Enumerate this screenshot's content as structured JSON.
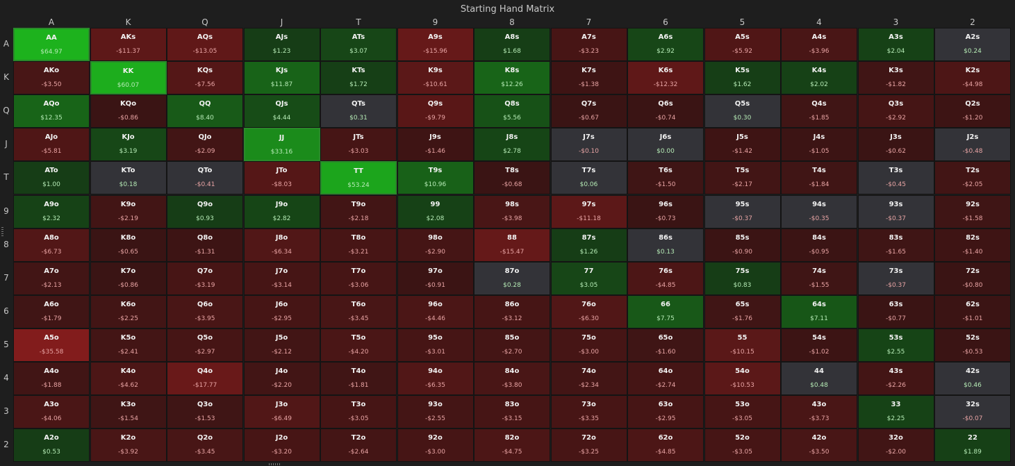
{
  "title": "Starting Hand Matrix",
  "ranks": [
    "A",
    "K",
    "Q",
    "J",
    "T",
    "9",
    "8",
    "7",
    "6",
    "5",
    "4",
    "3",
    "2"
  ],
  "cells": [
    [
      [
        "AA",
        "$64.97"
      ],
      [
        "AKs",
        "-$11.37"
      ],
      [
        "AQs",
        "-$13.05"
      ],
      [
        "AJs",
        "$1.23"
      ],
      [
        "ATs",
        "$3.07"
      ],
      [
        "A9s",
        "-$15.96"
      ],
      [
        "A8s",
        "$1.68"
      ],
      [
        "A7s",
        "-$3.23"
      ],
      [
        "A6s",
        "$2.92"
      ],
      [
        "A5s",
        "-$5.92"
      ],
      [
        "A4s",
        "-$3.96"
      ],
      [
        "A3s",
        "$2.04"
      ],
      [
        "A2s",
        "$0.24"
      ]
    ],
    [
      [
        "AKo",
        "-$3.50"
      ],
      [
        "KK",
        "$60.07"
      ],
      [
        "KQs",
        "-$7.56"
      ],
      [
        "KJs",
        "$11.87"
      ],
      [
        "KTs",
        "$1.72"
      ],
      [
        "K9s",
        "-$10.61"
      ],
      [
        "K8s",
        "$12.26"
      ],
      [
        "K7s",
        "-$1.38"
      ],
      [
        "K6s",
        "-$12.32"
      ],
      [
        "K5s",
        "$1.62"
      ],
      [
        "K4s",
        "$2.02"
      ],
      [
        "K3s",
        "-$1.82"
      ],
      [
        "K2s",
        "-$4.98"
      ]
    ],
    [
      [
        "AQo",
        "$12.35"
      ],
      [
        "KQo",
        "-$0.86"
      ],
      [
        "QQ",
        "$8.40"
      ],
      [
        "QJs",
        "$4.44"
      ],
      [
        "QTs",
        "$0.31"
      ],
      [
        "Q9s",
        "-$9.79"
      ],
      [
        "Q8s",
        "$5.56"
      ],
      [
        "Q7s",
        "-$0.67"
      ],
      [
        "Q6s",
        "-$0.74"
      ],
      [
        "Q5s",
        "$0.30"
      ],
      [
        "Q4s",
        "-$1.85"
      ],
      [
        "Q3s",
        "-$2.92"
      ],
      [
        "Q2s",
        "-$1.20"
      ]
    ],
    [
      [
        "AJo",
        "-$5.81"
      ],
      [
        "KJo",
        "$3.19"
      ],
      [
        "QJo",
        "-$2.09"
      ],
      [
        "JJ",
        "$33.16"
      ],
      [
        "JTs",
        "-$3.03"
      ],
      [
        "J9s",
        "-$1.46"
      ],
      [
        "J8s",
        "$2.78"
      ],
      [
        "J7s",
        "-$0.10"
      ],
      [
        "J6s",
        "$0.00"
      ],
      [
        "J5s",
        "-$1.42"
      ],
      [
        "J4s",
        "-$1.05"
      ],
      [
        "J3s",
        "-$0.62"
      ],
      [
        "J2s",
        "-$0.48"
      ]
    ],
    [
      [
        "ATo",
        "$1.00"
      ],
      [
        "KTo",
        "$0.18"
      ],
      [
        "QTo",
        "-$0.41"
      ],
      [
        "JTo",
        "-$8.03"
      ],
      [
        "TT",
        "$53.24"
      ],
      [
        "T9s",
        "$10.96"
      ],
      [
        "T8s",
        "-$0.68"
      ],
      [
        "T7s",
        "$0.06"
      ],
      [
        "T6s",
        "-$1.50"
      ],
      [
        "T5s",
        "-$2.17"
      ],
      [
        "T4s",
        "-$1.84"
      ],
      [
        "T3s",
        "-$0.45"
      ],
      [
        "T2s",
        "-$2.05"
      ]
    ],
    [
      [
        "A9o",
        "$2.32"
      ],
      [
        "K9o",
        "-$2.19"
      ],
      [
        "Q9o",
        "$0.93"
      ],
      [
        "J9o",
        "$2.82"
      ],
      [
        "T9o",
        "-$2.18"
      ],
      [
        "99",
        "$2.08"
      ],
      [
        "98s",
        "-$3.98"
      ],
      [
        "97s",
        "-$11.18"
      ],
      [
        "96s",
        "-$0.73"
      ],
      [
        "95s",
        "-$0.37"
      ],
      [
        "94s",
        "-$0.35"
      ],
      [
        "93s",
        "-$0.37"
      ],
      [
        "92s",
        "-$1.58"
      ]
    ],
    [
      [
        "A8o",
        "-$6.73"
      ],
      [
        "K8o",
        "-$0.65"
      ],
      [
        "Q8o",
        "-$1.31"
      ],
      [
        "J8o",
        "-$6.34"
      ],
      [
        "T8o",
        "-$3.21"
      ],
      [
        "98o",
        "-$2.90"
      ],
      [
        "88",
        "-$15.47"
      ],
      [
        "87s",
        "$1.26"
      ],
      [
        "86s",
        "$0.13"
      ],
      [
        "85s",
        "-$0.90"
      ],
      [
        "84s",
        "-$0.95"
      ],
      [
        "83s",
        "-$1.65"
      ],
      [
        "82s",
        "-$1.40"
      ]
    ],
    [
      [
        "A7o",
        "-$2.13"
      ],
      [
        "K7o",
        "-$0.86"
      ],
      [
        "Q7o",
        "-$3.19"
      ],
      [
        "J7o",
        "-$3.14"
      ],
      [
        "T7o",
        "-$3.06"
      ],
      [
        "97o",
        "-$0.91"
      ],
      [
        "87o",
        "$0.28"
      ],
      [
        "77",
        "$3.05"
      ],
      [
        "76s",
        "-$4.85"
      ],
      [
        "75s",
        "$0.83"
      ],
      [
        "74s",
        "-$1.55"
      ],
      [
        "73s",
        "-$0.37"
      ],
      [
        "72s",
        "-$0.80"
      ]
    ],
    [
      [
        "A6o",
        "-$1.79"
      ],
      [
        "K6o",
        "-$2.25"
      ],
      [
        "Q6o",
        "-$3.95"
      ],
      [
        "J6o",
        "-$2.95"
      ],
      [
        "T6o",
        "-$3.45"
      ],
      [
        "96o",
        "-$4.46"
      ],
      [
        "86o",
        "-$3.12"
      ],
      [
        "76o",
        "-$6.30"
      ],
      [
        "66",
        "$7.75"
      ],
      [
        "65s",
        "-$1.76"
      ],
      [
        "64s",
        "$7.11"
      ],
      [
        "63s",
        "-$0.77"
      ],
      [
        "62s",
        "-$1.01"
      ]
    ],
    [
      [
        "A5o",
        "-$35.58"
      ],
      [
        "K5o",
        "-$2.41"
      ],
      [
        "Q5o",
        "-$2.97"
      ],
      [
        "J5o",
        "-$2.12"
      ],
      [
        "T5o",
        "-$4.20"
      ],
      [
        "95o",
        "-$3.01"
      ],
      [
        "85o",
        "-$2.70"
      ],
      [
        "75o",
        "-$3.00"
      ],
      [
        "65o",
        "-$1.60"
      ],
      [
        "55",
        "-$10.15"
      ],
      [
        "54s",
        "-$1.02"
      ],
      [
        "53s",
        "$2.55"
      ],
      [
        "52s",
        "-$0.53"
      ]
    ],
    [
      [
        "A4o",
        "-$1.88"
      ],
      [
        "K4o",
        "-$4.62"
      ],
      [
        "Q4o",
        "-$17.77"
      ],
      [
        "J4o",
        "-$2.20"
      ],
      [
        "T4o",
        "-$1.81"
      ],
      [
        "94o",
        "-$6.35"
      ],
      [
        "84o",
        "-$3.80"
      ],
      [
        "74o",
        "-$2.34"
      ],
      [
        "64o",
        "-$2.74"
      ],
      [
        "54o",
        "-$10.53"
      ],
      [
        "44",
        "$0.48"
      ],
      [
        "43s",
        "-$2.26"
      ],
      [
        "42s",
        "$0.46"
      ]
    ],
    [
      [
        "A3o",
        "-$4.06"
      ],
      [
        "K3o",
        "-$1.54"
      ],
      [
        "Q3o",
        "-$1.53"
      ],
      [
        "J3o",
        "-$6.49"
      ],
      [
        "T3o",
        "-$3.05"
      ],
      [
        "93o",
        "-$2.55"
      ],
      [
        "83o",
        "-$3.15"
      ],
      [
        "73o",
        "-$3.35"
      ],
      [
        "63o",
        "-$2.95"
      ],
      [
        "53o",
        "-$3.05"
      ],
      [
        "43o",
        "-$3.73"
      ],
      [
        "33",
        "$2.25"
      ],
      [
        "32s",
        "-$0.07"
      ]
    ],
    [
      [
        "A2o",
        "$0.53"
      ],
      [
        "K2o",
        "-$3.92"
      ],
      [
        "Q2o",
        "-$3.45"
      ],
      [
        "J2o",
        "-$3.20"
      ],
      [
        "T2o",
        "-$2.64"
      ],
      [
        "92o",
        "-$3.00"
      ],
      [
        "82o",
        "-$4.75"
      ],
      [
        "72o",
        "-$3.25"
      ],
      [
        "62o",
        "-$4.85"
      ],
      [
        "52o",
        "-$3.05"
      ],
      [
        "42o",
        "-$3.50"
      ],
      [
        "32o",
        "-$2.00"
      ],
      [
        "22",
        "$1.89"
      ]
    ]
  ],
  "colors": {
    "background": "#1e1e1e",
    "neutral": "#333338",
    "positive_weak": "#163d16",
    "positive_strong": "#1db21d",
    "negative_weak": "#3a1414",
    "negative_strong": "#821c1c",
    "selected_border": "#2a8a2a"
  }
}
